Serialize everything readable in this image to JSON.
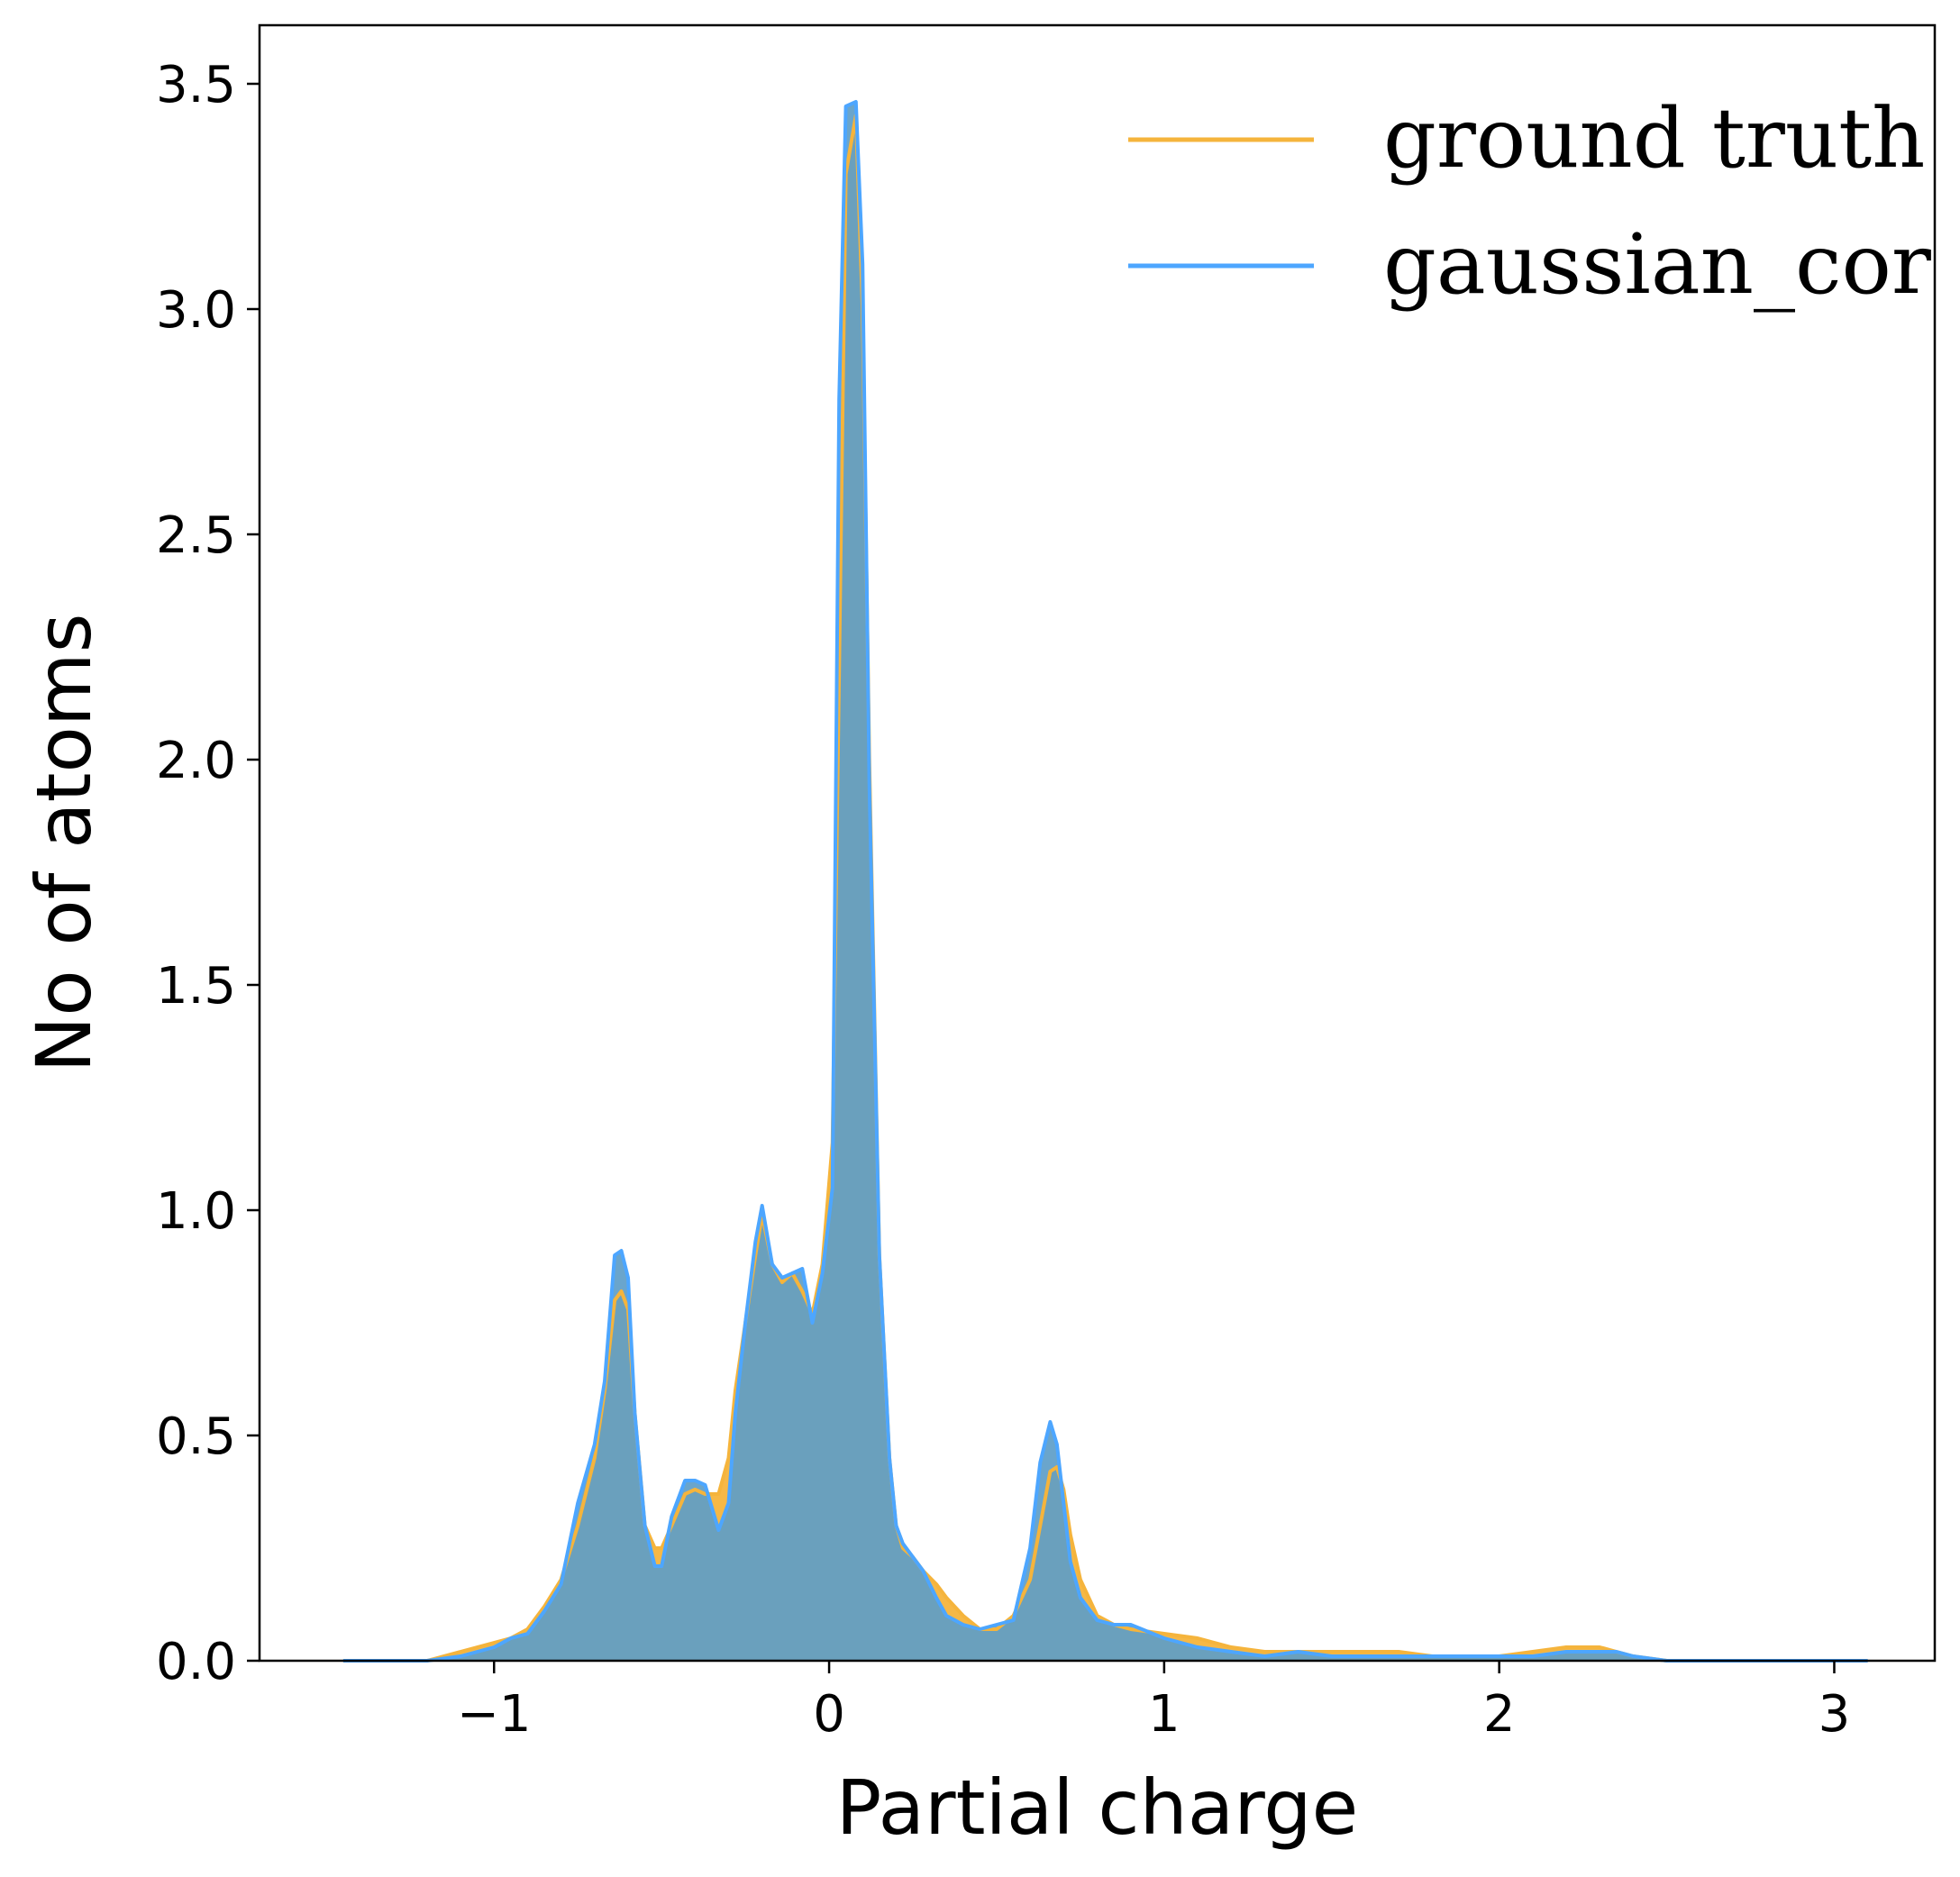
{
  "chart_data": {
    "type": "area",
    "xlabel": "Partial charge",
    "ylabel": "No of atoms",
    "xlim": [
      -1.7,
      3.3
    ],
    "ylim": [
      0,
      3.63
    ],
    "xticks": [
      -1,
      0,
      1,
      2,
      3
    ],
    "xtick_labels": [
      "−1",
      "0",
      "1",
      "2",
      "3"
    ],
    "yticks": [
      0.0,
      0.5,
      1.0,
      1.5,
      2.0,
      2.5,
      3.0,
      3.5
    ],
    "ytick_labels": [
      "0.0",
      "0.5",
      "1.0",
      "1.5",
      "2.0",
      "2.5",
      "3.0",
      "3.5"
    ],
    "grid": false,
    "legend_position": "top-right",
    "series": [
      {
        "name": "ground truth",
        "color": "#f5b43c",
        "x": [
          -1.45,
          -1.3,
          -1.2,
          -1.1,
          -1.0,
          -0.95,
          -0.9,
          -0.85,
          -0.8,
          -0.75,
          -0.7,
          -0.67,
          -0.64,
          -0.62,
          -0.6,
          -0.58,
          -0.55,
          -0.52,
          -0.5,
          -0.47,
          -0.43,
          -0.4,
          -0.37,
          -0.33,
          -0.3,
          -0.28,
          -0.25,
          -0.22,
          -0.2,
          -0.17,
          -0.14,
          -0.11,
          -0.08,
          -0.05,
          -0.02,
          0.01,
          0.03,
          0.05,
          0.08,
          0.1,
          0.12,
          0.15,
          0.18,
          0.2,
          0.22,
          0.25,
          0.28,
          0.32,
          0.35,
          0.4,
          0.45,
          0.5,
          0.55,
          0.6,
          0.63,
          0.66,
          0.68,
          0.7,
          0.72,
          0.75,
          0.8,
          0.85,
          0.9,
          1.0,
          1.1,
          1.2,
          1.3,
          1.4,
          1.5,
          1.6,
          1.7,
          1.8,
          1.9,
          2.0,
          2.1,
          2.2,
          2.3,
          2.35,
          2.4,
          2.5,
          2.7,
          2.9,
          3.1
        ],
        "y": [
          0.0,
          0.0,
          0.0,
          0.02,
          0.04,
          0.05,
          0.07,
          0.12,
          0.18,
          0.3,
          0.45,
          0.6,
          0.8,
          0.82,
          0.78,
          0.55,
          0.3,
          0.25,
          0.25,
          0.3,
          0.37,
          0.38,
          0.37,
          0.37,
          0.45,
          0.6,
          0.75,
          0.9,
          0.99,
          0.88,
          0.84,
          0.86,
          0.82,
          0.77,
          0.88,
          1.15,
          2.2,
          3.3,
          3.43,
          3.0,
          2.0,
          0.9,
          0.45,
          0.3,
          0.25,
          0.23,
          0.2,
          0.17,
          0.14,
          0.1,
          0.07,
          0.07,
          0.1,
          0.18,
          0.3,
          0.42,
          0.43,
          0.38,
          0.28,
          0.18,
          0.1,
          0.08,
          0.07,
          0.06,
          0.05,
          0.03,
          0.02,
          0.02,
          0.02,
          0.02,
          0.02,
          0.01,
          0.01,
          0.01,
          0.02,
          0.03,
          0.03,
          0.02,
          0.01,
          0.0,
          0.0,
          0.0,
          0.0
        ]
      },
      {
        "name": "gaussian_cor",
        "color": "#4da6ff",
        "x": [
          -1.45,
          -1.3,
          -1.2,
          -1.1,
          -1.0,
          -0.95,
          -0.9,
          -0.85,
          -0.8,
          -0.75,
          -0.7,
          -0.67,
          -0.64,
          -0.62,
          -0.6,
          -0.58,
          -0.55,
          -0.52,
          -0.5,
          -0.47,
          -0.43,
          -0.4,
          -0.37,
          -0.33,
          -0.3,
          -0.28,
          -0.25,
          -0.22,
          -0.2,
          -0.17,
          -0.14,
          -0.11,
          -0.08,
          -0.05,
          -0.02,
          0.01,
          0.03,
          0.05,
          0.08,
          0.1,
          0.12,
          0.15,
          0.18,
          0.2,
          0.22,
          0.25,
          0.28,
          0.32,
          0.35,
          0.4,
          0.45,
          0.5,
          0.55,
          0.6,
          0.63,
          0.66,
          0.68,
          0.7,
          0.72,
          0.75,
          0.8,
          0.85,
          0.9,
          1.0,
          1.1,
          1.2,
          1.3,
          1.4,
          1.5,
          1.6,
          1.7,
          1.8,
          1.9,
          2.0,
          2.1,
          2.2,
          2.3,
          2.35,
          2.4,
          2.5,
          2.7,
          2.9,
          3.1
        ],
        "y": [
          0.0,
          0.0,
          0.0,
          0.01,
          0.03,
          0.05,
          0.06,
          0.11,
          0.17,
          0.35,
          0.48,
          0.62,
          0.9,
          0.91,
          0.85,
          0.55,
          0.3,
          0.21,
          0.21,
          0.32,
          0.4,
          0.4,
          0.39,
          0.29,
          0.35,
          0.55,
          0.75,
          0.93,
          1.01,
          0.88,
          0.85,
          0.86,
          0.87,
          0.75,
          0.86,
          1.05,
          2.8,
          3.45,
          3.46,
          3.1,
          1.95,
          0.9,
          0.45,
          0.3,
          0.26,
          0.23,
          0.2,
          0.14,
          0.1,
          0.08,
          0.07,
          0.08,
          0.09,
          0.25,
          0.44,
          0.53,
          0.48,
          0.35,
          0.22,
          0.14,
          0.09,
          0.08,
          0.08,
          0.05,
          0.03,
          0.02,
          0.01,
          0.02,
          0.01,
          0.01,
          0.01,
          0.01,
          0.01,
          0.01,
          0.01,
          0.02,
          0.02,
          0.02,
          0.01,
          0.0,
          0.0,
          0.0,
          0.0
        ]
      }
    ]
  },
  "legend": {
    "items": [
      {
        "label": "ground truth",
        "color": "#f5b43c"
      },
      {
        "label": "gaussian_cor",
        "color": "#4da6ff"
      }
    ]
  },
  "colors": {
    "overlap_fill": "#5d9dc8",
    "axis": "#000000"
  }
}
